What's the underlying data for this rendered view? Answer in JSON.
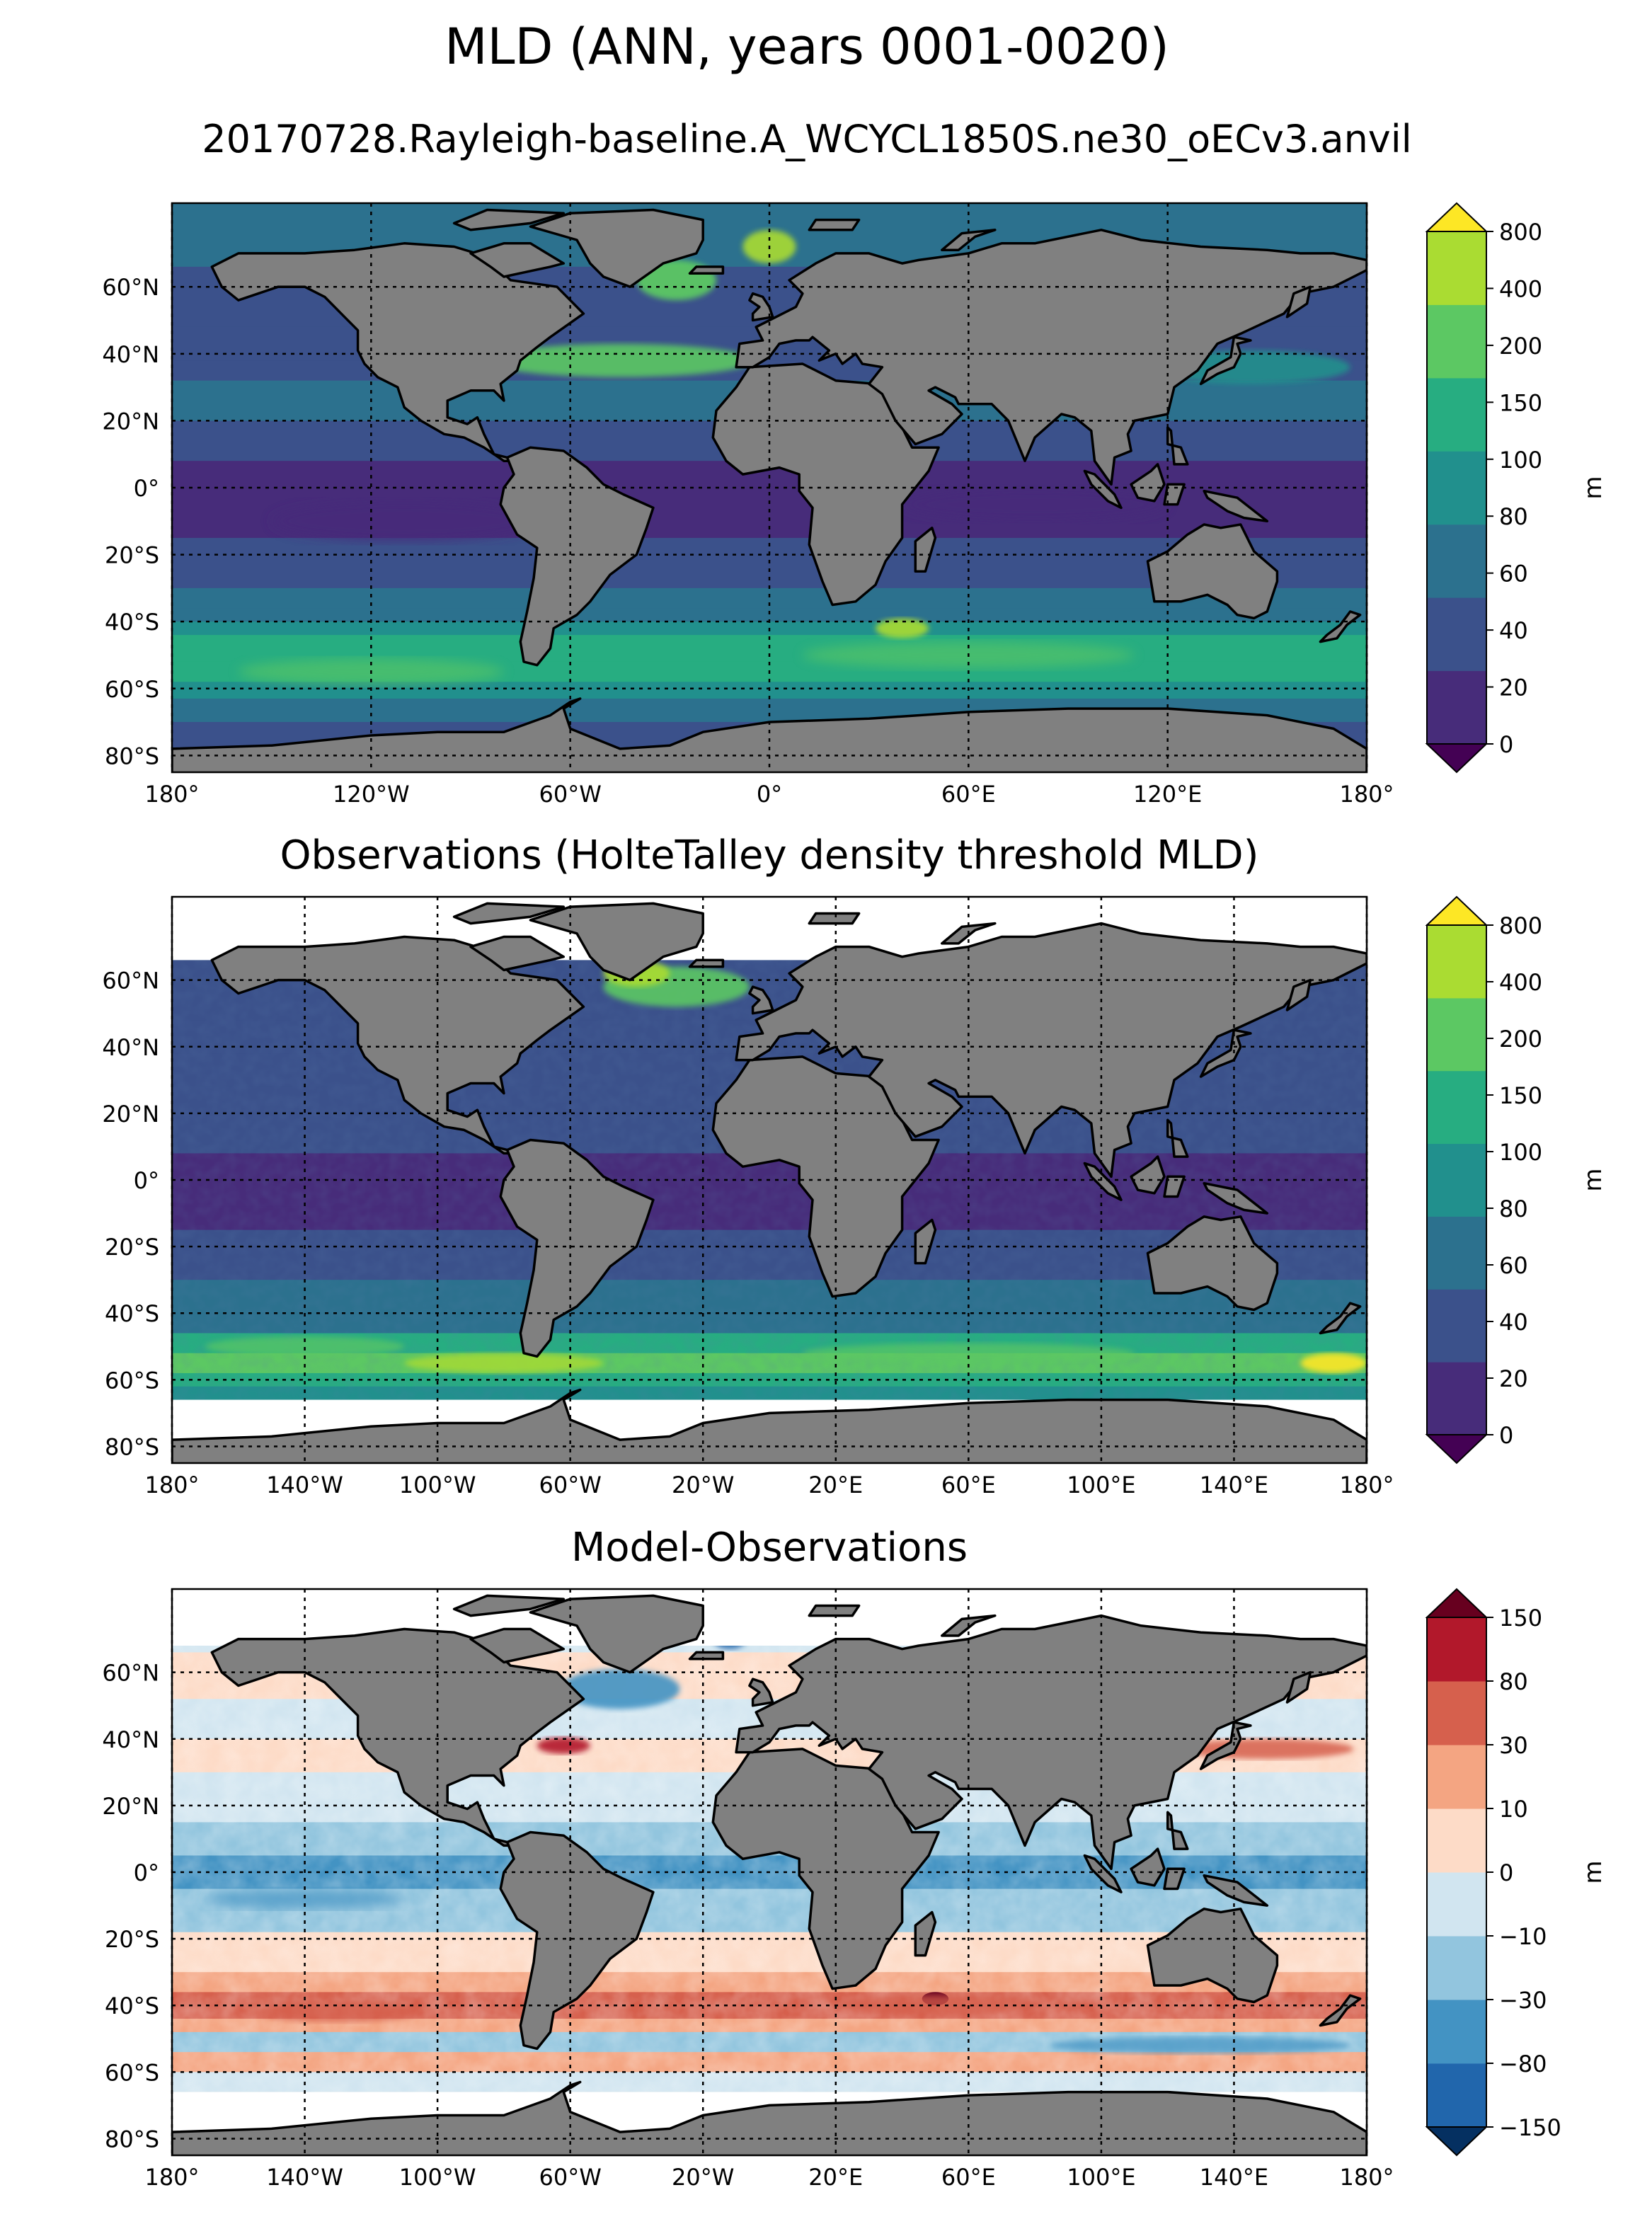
{
  "figure": {
    "title": "MLD (ANN, years 0001-0020)",
    "subtitle": "20170728.Rayleigh-baseline.A_WCYCL1850S.ne30_oECv3.anvil"
  },
  "colors": {
    "land": "#808080",
    "grid": "#000000",
    "missing": "#ffffff",
    "viridis_levels": [
      "#440154",
      "#472c7a",
      "#3b518b",
      "#2c718e",
      "#21908d",
      "#27ad81",
      "#5cc863",
      "#aadc32",
      "#fde725"
    ],
    "rdbu_levels": [
      "#053061",
      "#2166ac",
      "#4393c3",
      "#92c5de",
      "#d1e5f0",
      "#fddbc7",
      "#f4a582",
      "#d6604d",
      "#b2182b",
      "#67001f"
    ]
  },
  "chart_data": [
    {
      "type": "heatmap",
      "panel_title": "",
      "field": "model",
      "xticklabels": [
        "180°",
        "120°W",
        "60°W",
        "0°",
        "60°E",
        "120°E",
        "180°"
      ],
      "xtick_values": [
        -180,
        -120,
        -60,
        0,
        60,
        120,
        180
      ],
      "yticklabels": [
        "60°N",
        "40°N",
        "20°N",
        "0°",
        "20°S",
        "40°S",
        "60°S",
        "80°S"
      ],
      "ytick_values": [
        60,
        40,
        20,
        0,
        -20,
        -40,
        -60,
        -80
      ],
      "xlim": [
        -180,
        180
      ],
      "ylim": [
        -85,
        85
      ],
      "colorbar": {
        "label": "m",
        "ticks": [
          "0",
          "20",
          "40",
          "60",
          "80",
          "100",
          "150",
          "200",
          "400",
          "800"
        ],
        "extend": "both"
      }
    },
    {
      "type": "heatmap",
      "panel_title": "Observations (HolteTalley density threshold MLD)",
      "field": "obs",
      "xticklabels": [
        "180°",
        "140°W",
        "100°W",
        "60°W",
        "20°W",
        "20°E",
        "60°E",
        "100°E",
        "140°E",
        "180°"
      ],
      "xtick_values": [
        -180,
        -140,
        -100,
        -60,
        -20,
        20,
        60,
        100,
        140,
        180
      ],
      "yticklabels": [
        "60°N",
        "40°N",
        "20°N",
        "0°",
        "20°S",
        "40°S",
        "60°S",
        "80°S"
      ],
      "ytick_values": [
        60,
        40,
        20,
        0,
        -20,
        -40,
        -60,
        -80
      ],
      "xlim": [
        -180,
        180
      ],
      "ylim": [
        -85,
        85
      ],
      "colorbar": {
        "label": "m",
        "ticks": [
          "0",
          "20",
          "40",
          "60",
          "80",
          "100",
          "150",
          "200",
          "400",
          "800"
        ],
        "extend": "both"
      }
    },
    {
      "type": "heatmap",
      "panel_title": "Model-Observations",
      "field": "bias",
      "xticklabels": [
        "180°",
        "140°W",
        "100°W",
        "60°W",
        "20°W",
        "20°E",
        "60°E",
        "100°E",
        "140°E",
        "180°"
      ],
      "xtick_values": [
        -180,
        -140,
        -100,
        -60,
        -20,
        20,
        60,
        100,
        140,
        180
      ],
      "yticklabels": [
        "60°N",
        "40°N",
        "20°N",
        "0°",
        "20°S",
        "40°S",
        "60°S",
        "80°S"
      ],
      "ytick_values": [
        60,
        40,
        20,
        0,
        -20,
        -40,
        -60,
        -80
      ],
      "xlim": [
        -180,
        180
      ],
      "ylim": [
        -85,
        85
      ],
      "colorbar": {
        "label": "m",
        "ticks": [
          "−150",
          "−80",
          "−30",
          "−10",
          "0",
          "10",
          "30",
          "80",
          "150"
        ],
        "extend": "both"
      }
    }
  ]
}
